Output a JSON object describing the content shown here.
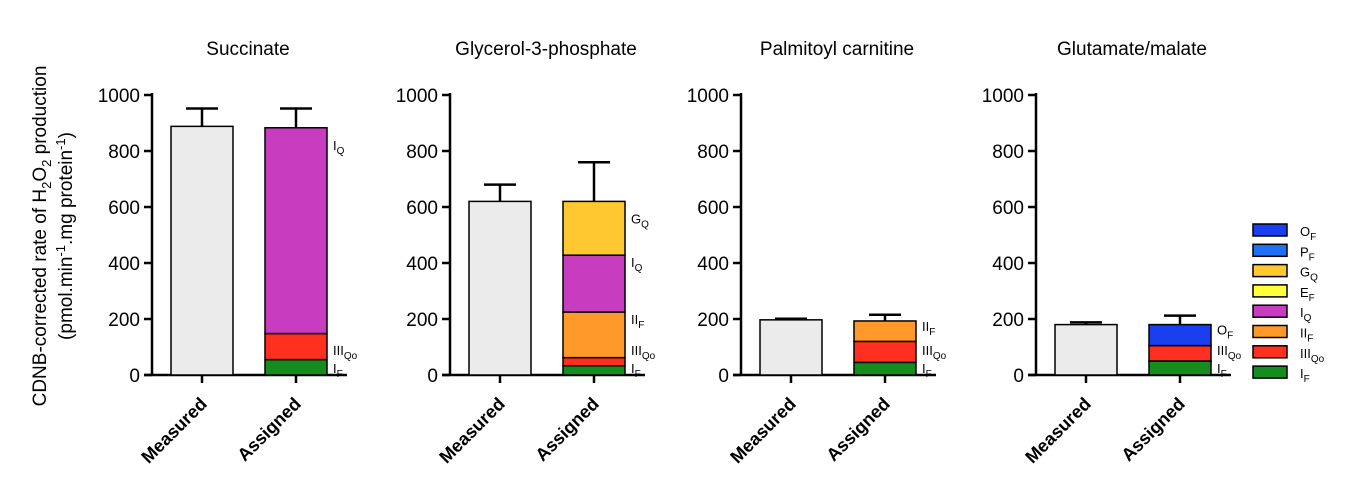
{
  "chart_data": {
    "type": "bar",
    "ylabel": {
      "line1_pre": "CDNB-corrected rate of H",
      "line1_sub1": "2",
      "line1_mid": "O",
      "line1_sub2": "2",
      "line1_post": " production",
      "line2_pre": "(pmol.min",
      "line2_sup1": "-1",
      "line2_mid": ".mg protein",
      "line2_sup2": "-1",
      "line2_post": ")"
    },
    "ylim": [
      0,
      1000
    ],
    "yticks": [
      0,
      200,
      400,
      600,
      800,
      1000
    ],
    "categories": [
      "Measured",
      "Assigned"
    ],
    "measured_color": "#ebebeb",
    "legend": {
      "placement": "right",
      "items": [
        {
          "main": "O",
          "sub": "F",
          "color": "#1a3ff0"
        },
        {
          "main": "P",
          "sub": "F",
          "color": "#1f70f5"
        },
        {
          "main": "G",
          "sub": "Q",
          "color": "#ffc830"
        },
        {
          "main": "E",
          "sub": "F",
          "color": "#ffff3a"
        },
        {
          "main": "I",
          "sub": "Q",
          "color": "#c83cc0"
        },
        {
          "main": "II",
          "sub": "F",
          "color": "#ff9a2a"
        },
        {
          "main": "III",
          "sub": "Qo",
          "color": "#ff3020"
        },
        {
          "main": "I",
          "sub": "F",
          "color": "#148c1e"
        }
      ]
    },
    "panels": [
      {
        "title": "Succinate",
        "measured": 888,
        "measured_err": 952,
        "assigned_err": 952,
        "segments": [
          {
            "main": "I",
            "sub": "F",
            "value": 55,
            "color": "#148c1e"
          },
          {
            "main": "III",
            "sub": "Qo",
            "value": 93,
            "color": "#ff3020"
          },
          {
            "main": "I",
            "sub": "Q",
            "value": 735,
            "color": "#c83cc0"
          }
        ]
      },
      {
        "title": "Glycerol-3-phosphate",
        "measured": 620,
        "measured_err": 680,
        "assigned_err": 760,
        "segments": [
          {
            "main": "I",
            "sub": "F",
            "value": 33,
            "color": "#148c1e"
          },
          {
            "main": "III",
            "sub": "Qo",
            "value": 29,
            "color": "#ff3020"
          },
          {
            "main": "II",
            "sub": "F",
            "value": 163,
            "color": "#ff9a2a"
          },
          {
            "main": "I",
            "sub": "Q",
            "value": 203,
            "color": "#c83cc0"
          },
          {
            "main": "G",
            "sub": "Q",
            "value": 192,
            "color": "#ffc830"
          }
        ]
      },
      {
        "title": "Palmitoyl carnitine",
        "measured": 197,
        "measured_err": 201,
        "assigned_err": 215,
        "segments": [
          {
            "main": "I",
            "sub": "F",
            "value": 45,
            "color": "#148c1e"
          },
          {
            "main": "III",
            "sub": "Qo",
            "value": 75,
            "color": "#ff3020"
          },
          {
            "main": "II",
            "sub": "F",
            "value": 73,
            "color": "#ff9a2a"
          }
        ]
      },
      {
        "title": "Glutamate/malate",
        "measured": 180,
        "measured_err": 188,
        "assigned_err": 212,
        "segments": [
          {
            "main": "I",
            "sub": "F",
            "value": 50,
            "color": "#148c1e"
          },
          {
            "main": "III",
            "sub": "Qo",
            "value": 55,
            "color": "#ff3020"
          },
          {
            "main": "O",
            "sub": "F",
            "value": 75,
            "color": "#1a3ff0"
          }
        ]
      }
    ]
  }
}
